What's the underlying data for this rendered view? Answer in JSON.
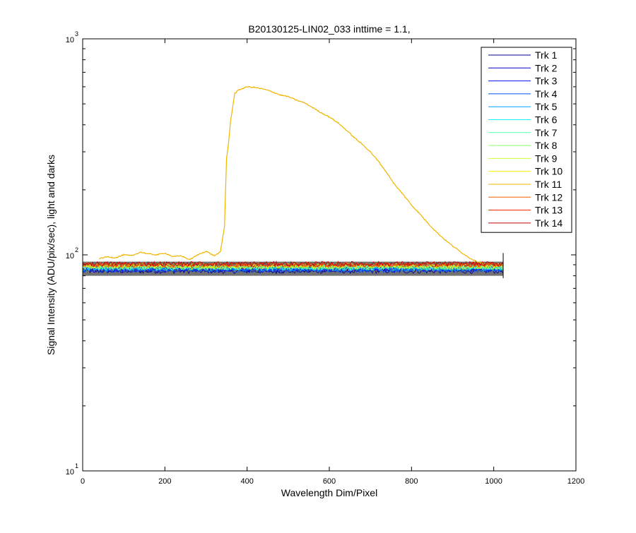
{
  "chart_data": {
    "type": "line",
    "title": "B20130125-LIN02_033 inttime = 1.1,",
    "xlabel": "Wavelength Dim/Pixel",
    "ylabel": "Signal Intensity (ADU/pix/sec), light and darks",
    "xlim": [
      0,
      1200
    ],
    "ylim": [
      10,
      1000
    ],
    "yscale": "log",
    "xticks": [
      0,
      200,
      400,
      600,
      800,
      1000,
      1200
    ],
    "xtick_labels": [
      "0",
      "200",
      "400",
      "600",
      "800",
      "1000",
      "1200"
    ],
    "yticks": [
      10,
      100,
      1000
    ],
    "ytick_labels": [
      {
        "base": "10",
        "exp": "1"
      },
      {
        "base": "10",
        "exp": "2"
      },
      {
        "base": "10",
        "exp": "3"
      }
    ],
    "grid": false,
    "legend_position": "top-right",
    "series": [
      {
        "name": "Trk 1",
        "color": "#00008f",
        "x": [
          0,
          1023
        ],
        "y": [
          84,
          84
        ]
      },
      {
        "name": "Trk 2",
        "color": "#0000cf",
        "x": [
          0,
          1023
        ],
        "y": [
          85,
          85
        ]
      },
      {
        "name": "Trk 3",
        "color": "#0010ff",
        "x": [
          0,
          1023
        ],
        "y": [
          86,
          86
        ]
      },
      {
        "name": "Trk 4",
        "color": "#0050ff",
        "x": [
          0,
          1023
        ],
        "y": [
          85,
          85
        ]
      },
      {
        "name": "Trk 5",
        "color": "#00a0ff",
        "x": [
          0,
          1023
        ],
        "y": [
          86,
          86
        ]
      },
      {
        "name": "Trk 6",
        "color": "#10f0ef",
        "x": [
          0,
          1023
        ],
        "y": [
          87,
          87
        ]
      },
      {
        "name": "Trk 7",
        "color": "#50ffaf",
        "x": [
          0,
          1023
        ],
        "y": [
          87,
          87
        ]
      },
      {
        "name": "Trk 8",
        "color": "#90ff6f",
        "x": [
          0,
          1023
        ],
        "y": [
          88,
          88
        ]
      },
      {
        "name": "Trk 9",
        "color": "#cfff30",
        "x": [
          0,
          1023
        ],
        "y": [
          88,
          88
        ]
      },
      {
        "name": "Trk 10",
        "color": "#f0f000",
        "x": [
          0,
          1023
        ],
        "y": [
          89,
          89
        ]
      },
      {
        "name": "Trk 11",
        "color": "#f0b400",
        "x": [
          40,
          60,
          80,
          100,
          120,
          140,
          160,
          180,
          200,
          220,
          240,
          260,
          280,
          300,
          320,
          335,
          345,
          350,
          355,
          360,
          370,
          380,
          390,
          400,
          420,
          440,
          460,
          480,
          500,
          520,
          540,
          560,
          580,
          600,
          620,
          640,
          660,
          680,
          700,
          720,
          740,
          760,
          780,
          800,
          820,
          840,
          860,
          880,
          900,
          920,
          940,
          960,
          980
        ],
        "y": [
          96,
          98,
          97,
          100,
          99,
          103,
          101,
          100,
          102,
          98,
          99,
          95,
          100,
          104,
          99,
          103,
          135,
          280,
          330,
          420,
          560,
          580,
          590,
          600,
          595,
          585,
          570,
          550,
          540,
          520,
          505,
          480,
          455,
          435,
          410,
          380,
          350,
          325,
          300,
          270,
          240,
          210,
          190,
          170,
          155,
          140,
          128,
          118,
          110,
          103,
          97,
          93,
          91
        ]
      },
      {
        "name": "Trk 12",
        "color": "#f06000",
        "x": [
          0,
          1023
        ],
        "y": [
          90,
          90
        ]
      },
      {
        "name": "Trk 13",
        "color": "#f02000",
        "x": [
          0,
          1023
        ],
        "y": [
          90,
          90
        ]
      },
      {
        "name": "Trk 14",
        "color": "#c00000",
        "x": [
          0,
          1023
        ],
        "y": [
          91,
          91
        ]
      }
    ],
    "dark_band": {
      "color": "#000000",
      "x": [
        0,
        1023
      ],
      "y_low": 80,
      "y_high": 93
    }
  }
}
